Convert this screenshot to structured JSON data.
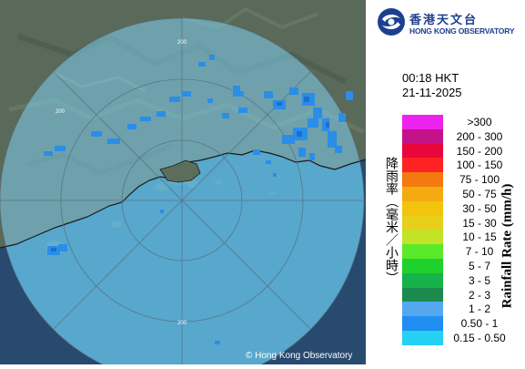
{
  "header": {
    "org_name_chinese": "香港天文台",
    "org_name_english": "HONG KONG OBSERVATORY"
  },
  "timestamp": {
    "time": "00:18 HKT",
    "date": "21-11-2025"
  },
  "legend": {
    "title_english": "Rainfall Rate (mm/h)",
    "title_chinese": "降雨率（毫米／小時）",
    "items": [
      {
        "label": ">300",
        "color": "#ee22ee"
      },
      {
        "label": "200 - 300",
        "color": "#c4138a"
      },
      {
        "label": "150 - 200",
        "color": "#e8063d"
      },
      {
        "label": "100 - 150",
        "color": "#ff2222"
      },
      {
        "label": "75 - 100",
        "color": "#f27a10"
      },
      {
        "label": "50 - 75",
        "color": "#f5aa10"
      },
      {
        "label": "30 - 50",
        "color": "#f2c40d"
      },
      {
        "label": "15 - 30",
        "color": "#e6d01a"
      },
      {
        "label": "10 - 15",
        "color": "#c3e327"
      },
      {
        "label": "7 - 10",
        "color": "#5aea2a"
      },
      {
        "label": "5 - 7",
        "color": "#1fd12d"
      },
      {
        "label": "3 - 5",
        "color": "#18b24b"
      },
      {
        "label": "2 - 3",
        "color": "#1a8a4e"
      },
      {
        "label": "1 - 2",
        "color": "#55a8f0"
      },
      {
        "label": "0.50 - 1",
        "color": "#1f8ef0"
      },
      {
        "label": "0.15 - 0.50",
        "color": "#25d0f5"
      }
    ]
  },
  "map": {
    "range_ring_labels": [
      "200",
      "200",
      "200"
    ],
    "copyright": "© Hong Kong Observatory",
    "colors": {
      "land": "#5a6e5a",
      "sea": "#27496e",
      "radar_coverage": "#7fd0f0",
      "rain": "#2a8ee8"
    }
  }
}
